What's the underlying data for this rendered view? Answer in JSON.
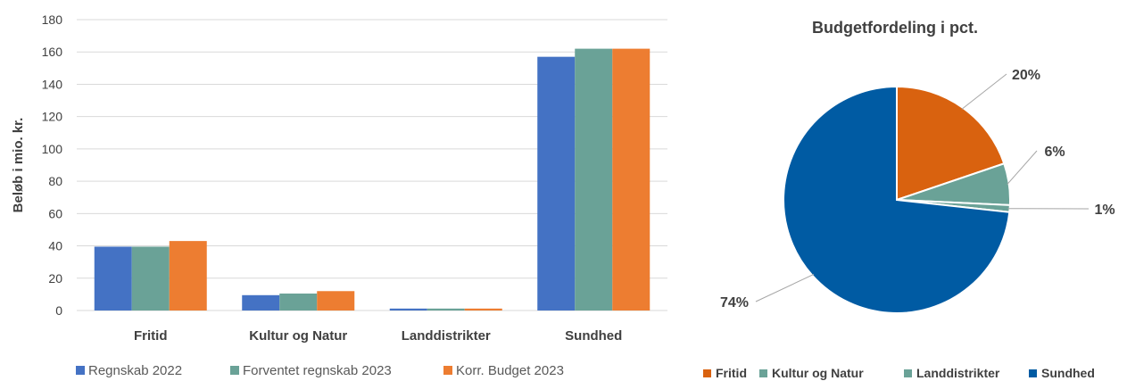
{
  "chart_data": [
    {
      "type": "bar",
      "title": "",
      "xlabel": "",
      "ylabel": "Beløb i mio. kr.",
      "ylim": [
        0,
        180
      ],
      "yticks": [
        "0",
        "20",
        "40",
        "60",
        "80",
        "100",
        "120",
        "140",
        "160",
        "180"
      ],
      "grid": true,
      "legend_position": "bottom",
      "categories": [
        "Fritid",
        "Kultur og Natur",
        "Landdistrikter",
        "Sundhed"
      ],
      "series": [
        {
          "name": "Regnskab 2022",
          "color": "#4472c4",
          "values": [
            39.5,
            9.5,
            1.2,
            157
          ]
        },
        {
          "name": "Forventet regnskab 2023",
          "color": "#6aa297",
          "values": [
            39.5,
            10.5,
            1.2,
            162
          ]
        },
        {
          "name": "Korr. Budget 2023",
          "color": "#ed7d31",
          "values": [
            43,
            12,
            1.2,
            162
          ]
        }
      ]
    },
    {
      "type": "pie",
      "title": "Budgetfordeling i pct.",
      "legend_position": "bottom",
      "slices": [
        {
          "name": "Fritid",
          "value": 20,
          "label": "20%",
          "color": "#d9620f"
        },
        {
          "name": "Kultur og Natur",
          "value": 6,
          "label": "6%",
          "color": "#6aa297"
        },
        {
          "name": "Landdistrikter",
          "value": 1,
          "label": "1%",
          "color": "#6aa297"
        },
        {
          "name": "Sundhed",
          "value": 74,
          "label": "74%",
          "color": "#005ba3"
        }
      ]
    }
  ]
}
